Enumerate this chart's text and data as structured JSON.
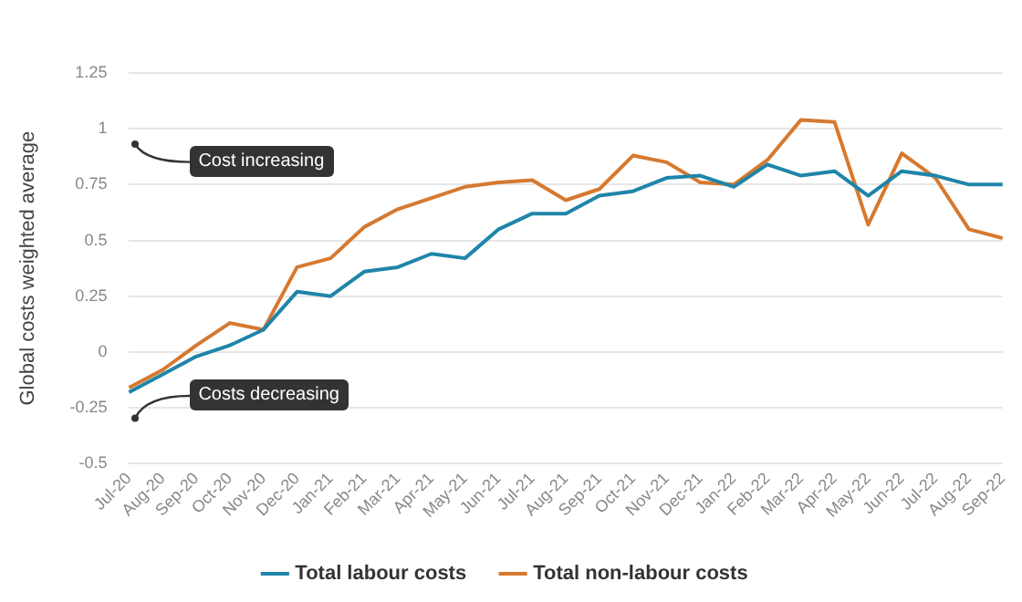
{
  "chart_data": {
    "type": "line",
    "ylabel": "Global costs weighted average",
    "categories": [
      "Jul-20",
      "Aug-20",
      "Sep-20",
      "Oct-20",
      "Nov-20",
      "Dec-20",
      "Jan-21",
      "Feb-21",
      "Mar-21",
      "Apr-21",
      "May-21",
      "Jun-21",
      "Jul-21",
      "Aug-21",
      "Sep-21",
      "Oct-21",
      "Nov-21",
      "Dec-21",
      "Jan-22",
      "Feb-22",
      "Mar-22",
      "Apr-22",
      "May-22",
      "Jun-22",
      "Jul-22",
      "Aug-22",
      "Sep-22"
    ],
    "series": [
      {
        "name": "Total labour costs",
        "color": "#1f85a9",
        "values": [
          -0.18,
          -0.1,
          -0.02,
          0.03,
          0.1,
          0.27,
          0.25,
          0.36,
          0.38,
          0.44,
          0.42,
          0.55,
          0.62,
          0.62,
          0.7,
          0.72,
          0.78,
          0.79,
          0.74,
          0.84,
          0.79,
          0.81,
          0.7,
          0.81,
          0.79,
          0.75,
          0.75
        ]
      },
      {
        "name": "Total non-labour costs",
        "color": "#d6792f",
        "values": [
          -0.16,
          -0.08,
          0.03,
          0.13,
          0.1,
          0.38,
          0.42,
          0.56,
          0.64,
          0.69,
          0.74,
          0.76,
          0.77,
          0.68,
          0.73,
          0.88,
          0.85,
          0.76,
          0.75,
          0.86,
          1.04,
          1.03,
          0.57,
          0.89,
          0.78,
          0.55,
          0.51
        ]
      }
    ],
    "ylim": [
      -0.5,
      1.25
    ],
    "yticks": [
      -0.5,
      -0.25,
      0,
      0.25,
      0.5,
      0.75,
      1,
      1.25
    ],
    "grid": "y",
    "legend": "bottom",
    "marker": "none",
    "line_style": "solid",
    "annotations": [
      "Cost increasing",
      "Costs decreasing"
    ]
  }
}
